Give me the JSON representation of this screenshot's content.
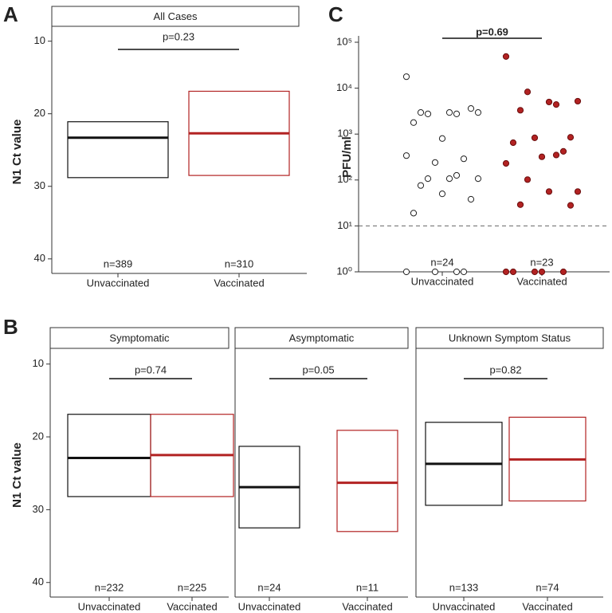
{
  "panel_labels": [
    "A",
    "B",
    "C"
  ],
  "chart_data": [
    {
      "type": "box",
      "title": "All Cases",
      "ylabel": "N1 Ct value",
      "categories": [
        "Unvaccinated",
        "Vaccinated"
      ],
      "series": [
        {
          "name": "Unvaccinated",
          "color": "#111111",
          "q1": 21.1,
          "median": 23.3,
          "q3": 28.8
        },
        {
          "name": "Vaccinated",
          "color": "#b22222",
          "q1": 16.9,
          "median": 22.7,
          "q3": 28.5
        }
      ],
      "n_labels": [
        "n=389",
        "n=310"
      ],
      "p_label": "p=0.23",
      "ylim": [
        8.5,
        42
      ],
      "yticks": [
        10,
        20,
        30,
        40
      ],
      "inverted": true
    },
    {
      "type": "box",
      "title": "Symptomatic",
      "ylabel": "N1 Ct value",
      "categories": [
        "Unvaccinated",
        "Vaccinated"
      ],
      "series": [
        {
          "name": "Unvaccinated",
          "color": "#111111",
          "q1": 16.9,
          "median": 22.9,
          "q3": 28.2
        },
        {
          "name": "Vaccinated",
          "color": "#b22222",
          "q1": 16.9,
          "median": 22.5,
          "q3": 28.2
        }
      ],
      "n_labels": [
        "n=232",
        "n=225"
      ],
      "p_label": "p=0.74",
      "ylim": [
        8.5,
        42
      ],
      "yticks": [
        10,
        20,
        30,
        40
      ],
      "inverted": true
    },
    {
      "type": "box",
      "title": "Asymptomatic",
      "categories": [
        "Unvaccinated",
        "Vaccinated"
      ],
      "series": [
        {
          "name": "Unvaccinated",
          "color": "#111111",
          "q1": 21.3,
          "median": 26.9,
          "q3": 32.5
        },
        {
          "name": "Vaccinated",
          "color": "#b22222",
          "q1": 19.1,
          "median": 26.3,
          "q3": 33.0
        }
      ],
      "n_labels": [
        "n=24",
        "n=11"
      ],
      "p_label": "p=0.05",
      "ylim": [
        8.5,
        42
      ],
      "inverted": true
    },
    {
      "type": "box",
      "title": "Unknown Symptom Status",
      "categories": [
        "Unvaccinated",
        "Vaccinated"
      ],
      "series": [
        {
          "name": "Unvaccinated",
          "color": "#111111",
          "q1": 18.0,
          "median": 23.7,
          "q3": 29.4
        },
        {
          "name": "Vaccinated",
          "color": "#b22222",
          "q1": 17.3,
          "median": 23.1,
          "q3": 28.8
        }
      ],
      "n_labels": [
        "n=133",
        "n=74"
      ],
      "p_label": "p=0.82",
      "ylim": [
        8.5,
        42
      ],
      "inverted": true
    },
    {
      "type": "scatter",
      "ylabel": "PFU/ml",
      "log_scale": true,
      "categories": [
        "Unvaccinated",
        "Vaccinated"
      ],
      "series": [
        {
          "name": "Unvaccinated",
          "color": "#ffffff",
          "values": [
            17800,
            2750,
            2750,
            2950,
            2950,
            2950,
            3600,
            800,
            1780,
            290,
            240,
            340,
            126,
            107,
            107,
            107,
            76,
            38,
            50,
            19,
            1,
            1,
            1,
            1
          ]
        },
        {
          "name": "Vaccinated",
          "color": "#b22222",
          "values": [
            49000,
            4400,
            8300,
            5200,
            5000,
            3300,
            850,
            320,
            650,
            420,
            830,
            230,
            350,
            102,
            56,
            56,
            29,
            28,
            1,
            1,
            1,
            1,
            1
          ]
        }
      ],
      "n_labels": [
        "n=24",
        "n=23"
      ],
      "p_label": "p=0.69",
      "reference_line": 10,
      "ylim": [
        1,
        100000
      ],
      "yticks": [
        {
          "value": 1,
          "label": "10⁰"
        },
        {
          "value": 10,
          "label": "10¹"
        },
        {
          "value": 100,
          "label": "10²"
        },
        {
          "value": 1000,
          "label": "10³"
        },
        {
          "value": 10000,
          "label": "10⁴"
        },
        {
          "value": 100000,
          "label": "10⁵"
        }
      ]
    }
  ]
}
